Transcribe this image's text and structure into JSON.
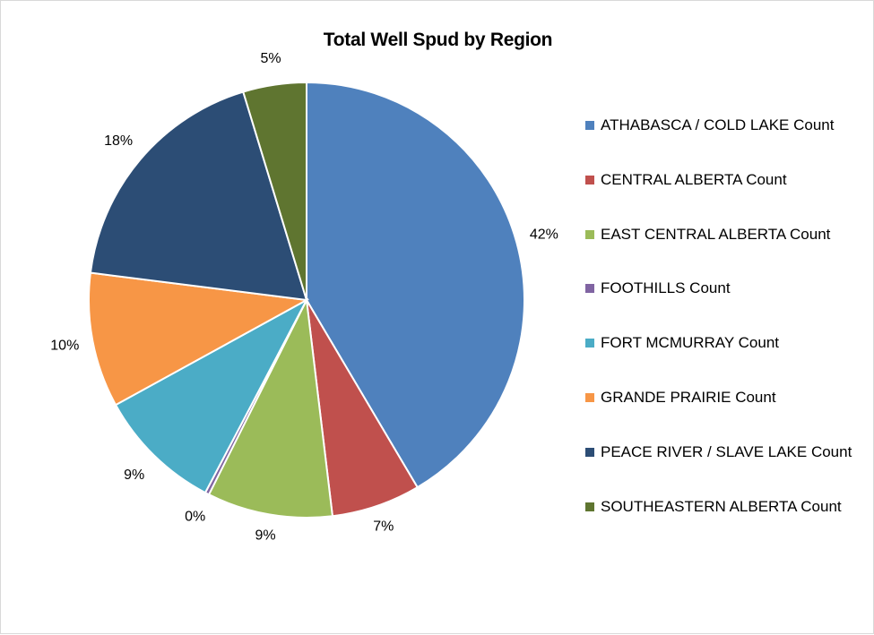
{
  "chart_data": {
    "type": "pie",
    "title": "Total Well Spud by Region",
    "slices": [
      {
        "name": "ATHABASCA / COLD LAKE Count",
        "value": 41.5,
        "label": "42%",
        "color": "#4F81BD"
      },
      {
        "name": "CENTRAL ALBERTA Count",
        "value": 6.6,
        "label": "7%",
        "color": "#C0504D"
      },
      {
        "name": "EAST CENTRAL ALBERTA Count",
        "value": 9.3,
        "label": "9%",
        "color": "#9BBB59"
      },
      {
        "name": "FOOTHILLS Count",
        "value": 0.3,
        "label": "0%",
        "color": "#8064A2"
      },
      {
        "name": "FORT MCMURRAY Count",
        "value": 9.3,
        "label": "9%",
        "color": "#4BACC6"
      },
      {
        "name": "GRANDE PRAIRIE Count",
        "value": 10.0,
        "label": "10%",
        "color": "#F79646"
      },
      {
        "name": "PEACE RIVER / SLAVE LAKE Count",
        "value": 18.3,
        "label": "18%",
        "color": "#2C4D75"
      },
      {
        "name": "SOUTHEASTERN ALBERTA Count",
        "value": 4.7,
        "label": "5%",
        "color": "#5F7530"
      }
    ],
    "start": "12 o'clock",
    "direction": "clockwise",
    "legend_position": "right"
  }
}
